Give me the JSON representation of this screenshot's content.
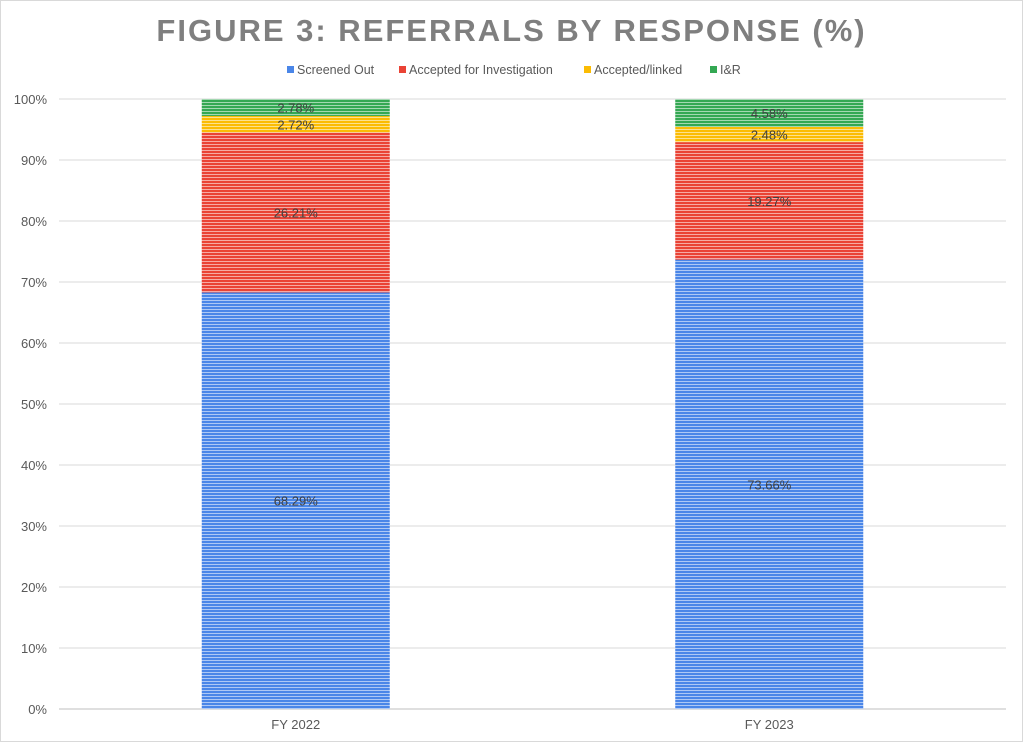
{
  "chart_data": {
    "type": "bar",
    "stacked": true,
    "title": "FIGURE 3: REFERRALS BY RESPONSE (%)",
    "categories": [
      "FY 2022",
      "FY 2023"
    ],
    "series": [
      {
        "name": "Screened Out",
        "color": "#4a86e8",
        "values": [
          68.29,
          73.66
        ],
        "labels": [
          "68.29%",
          "73.66%"
        ]
      },
      {
        "name": "Accepted for Investigation",
        "color": "#ea4335",
        "values": [
          26.21,
          19.27
        ],
        "labels": [
          "26.21%",
          "19.27%"
        ]
      },
      {
        "name": "Accepted/linked",
        "color": "#fbbc04",
        "values": [
          2.72,
          2.48
        ],
        "labels": [
          "2.72%",
          "2.48%"
        ]
      },
      {
        "name": "I&R",
        "color": "#34a853",
        "values": [
          2.78,
          4.58
        ],
        "labels": [
          "2.78%",
          "4.58%"
        ]
      }
    ],
    "ylim": [
      0,
      100
    ],
    "yticks": [
      "0%",
      "10%",
      "20%",
      "30%",
      "40%",
      "50%",
      "60%",
      "70%",
      "80%",
      "90%",
      "100%"
    ],
    "grid": true,
    "legend": "top",
    "xlabel": "",
    "ylabel": ""
  }
}
